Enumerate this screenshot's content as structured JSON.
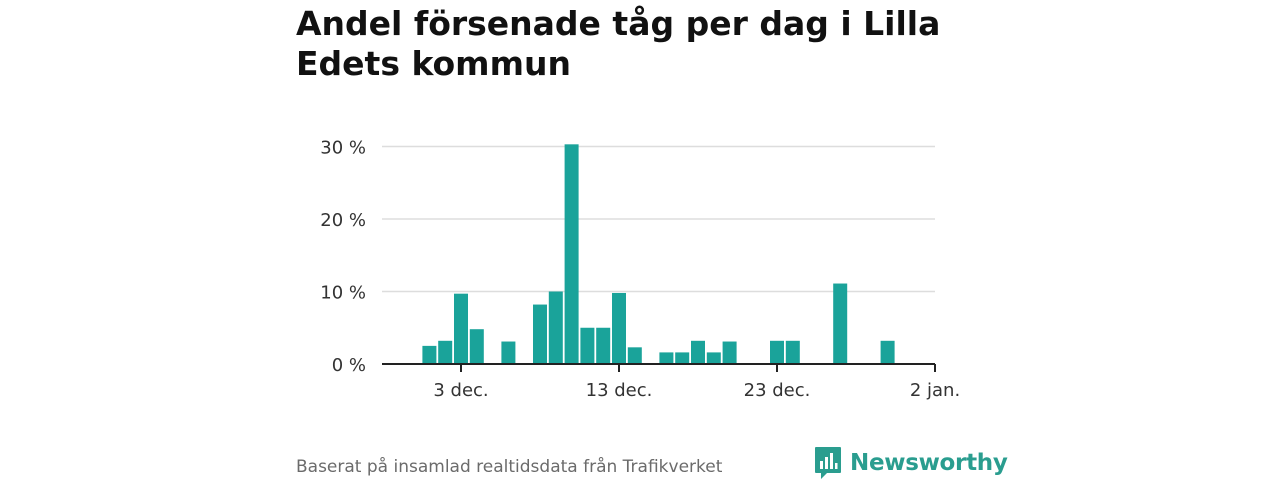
{
  "header": {
    "title": "Andel försenade tåg per dag i Lilla Edets kommun"
  },
  "footer": {
    "source": "Baserat på insamlad realtidsdata från Trafikverket",
    "brand": "Newsworthy",
    "brand_icon": "newsworthy-bar-chart-logo-icon"
  },
  "colors": {
    "bar": "#1aa39a",
    "grid": "#dddddd",
    "axis": "#222222",
    "brand": "#2a9d8f"
  },
  "chart_data": {
    "type": "bar",
    "title": "Andel försenade tåg per dag i Lilla Edets kommun",
    "xlabel": "",
    "ylabel": "",
    "x_unit": "date",
    "x_range": [
      "2023-11-28",
      "2024-01-02"
    ],
    "ylim": [
      0,
      30
    ],
    "y_ticks": [
      0,
      10,
      20,
      30
    ],
    "y_tick_labels": [
      "0 %",
      "10 %",
      "20 %",
      "30 %"
    ],
    "x_ticks": [
      "2023-12-03",
      "2023-12-13",
      "2023-12-23",
      "2024-01-02"
    ],
    "x_tick_labels": [
      "3 dec.",
      "13 dec.",
      "23 dec.",
      "2 jan."
    ],
    "grid": true,
    "legend": "none",
    "points": [
      {
        "date": "2023-12-01",
        "value": 2.5
      },
      {
        "date": "2023-12-02",
        "value": 3.2
      },
      {
        "date": "2023-12-03",
        "value": 9.7
      },
      {
        "date": "2023-12-04",
        "value": 4.8
      },
      {
        "date": "2023-12-06",
        "value": 3.1
      },
      {
        "date": "2023-12-08",
        "value": 8.2
      },
      {
        "date": "2023-12-09",
        "value": 10.0
      },
      {
        "date": "2023-12-10",
        "value": 30.3
      },
      {
        "date": "2023-12-11",
        "value": 5.0
      },
      {
        "date": "2023-12-12",
        "value": 5.0
      },
      {
        "date": "2023-12-13",
        "value": 9.8
      },
      {
        "date": "2023-12-14",
        "value": 2.3
      },
      {
        "date": "2023-12-16",
        "value": 1.6
      },
      {
        "date": "2023-12-17",
        "value": 1.6
      },
      {
        "date": "2023-12-18",
        "value": 3.2
      },
      {
        "date": "2023-12-19",
        "value": 1.6
      },
      {
        "date": "2023-12-20",
        "value": 3.1
      },
      {
        "date": "2023-12-23",
        "value": 3.2
      },
      {
        "date": "2023-12-24",
        "value": 3.2
      },
      {
        "date": "2023-12-27",
        "value": 11.1
      },
      {
        "date": "2023-12-30",
        "value": 3.2
      }
    ]
  }
}
